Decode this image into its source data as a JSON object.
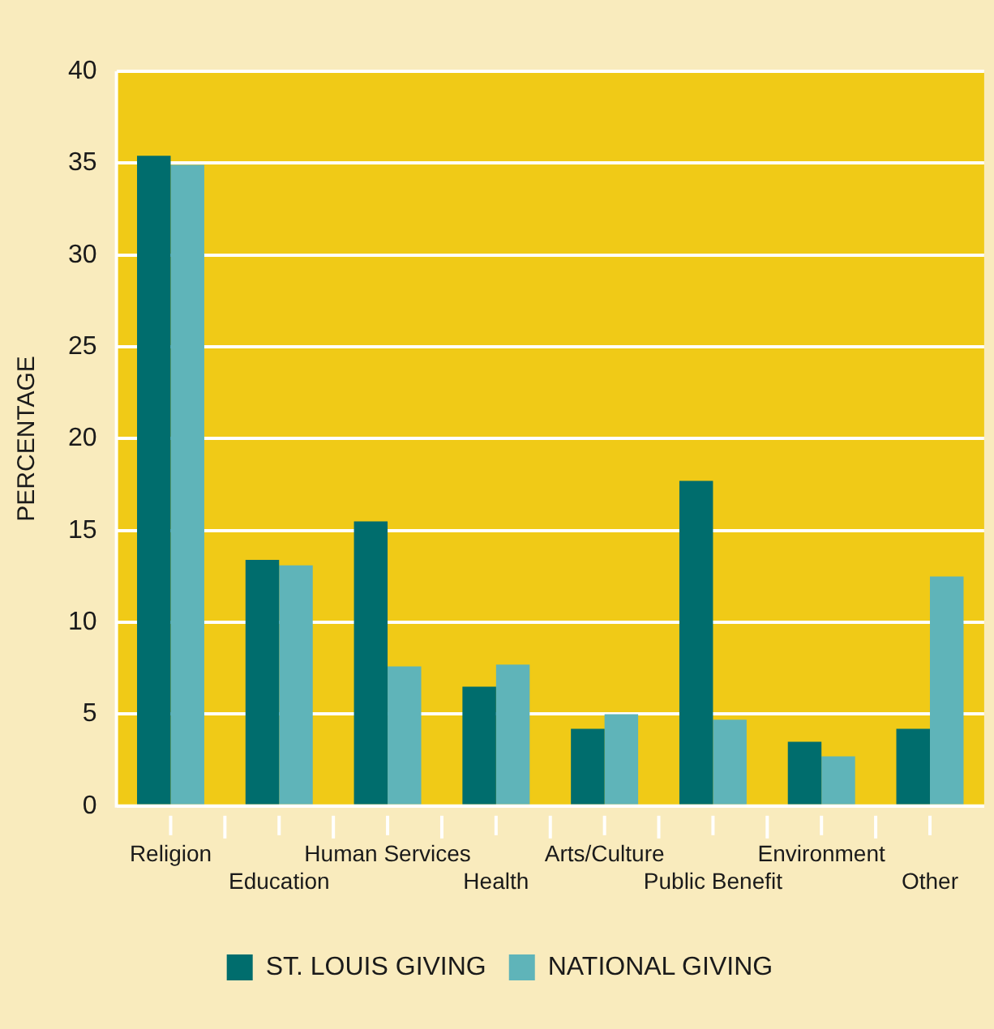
{
  "chart_data": {
    "type": "bar",
    "ylabel": "PERCENTAGE",
    "categories": [
      "Religion",
      "Education",
      "Human Services",
      "Health",
      "Arts/Culture",
      "Public Benefit",
      "Environment",
      "Other"
    ],
    "series": [
      {
        "name": "ST. LOUIS GIVING",
        "color": "#006d6d",
        "values": [
          35.4,
          13.4,
          15.5,
          6.5,
          4.2,
          17.7,
          3.5,
          4.2
        ]
      },
      {
        "name": "NATIONAL GIVING",
        "color": "#5fb4b9",
        "values": [
          34.9,
          13.1,
          7.6,
          7.7,
          5.0,
          4.7,
          2.7,
          12.5
        ]
      }
    ],
    "ylim": [
      0,
      40
    ],
    "yticks": [
      0,
      5,
      10,
      15,
      20,
      25,
      30,
      35,
      40
    ],
    "grid": "y",
    "legend": "bottom"
  }
}
